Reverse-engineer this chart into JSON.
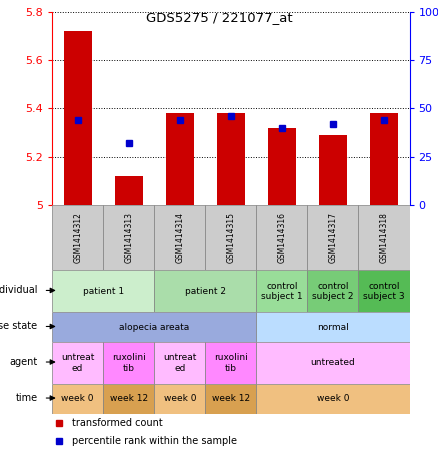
{
  "title": "GDS5275 / 221077_at",
  "samples": [
    "GSM1414312",
    "GSM1414313",
    "GSM1414314",
    "GSM1414315",
    "GSM1414316",
    "GSM1414317",
    "GSM1414318"
  ],
  "red_values": [
    5.72,
    5.12,
    5.38,
    5.38,
    5.32,
    5.29,
    5.38
  ],
  "blue_values": [
    44,
    32,
    44,
    46,
    40,
    42,
    44
  ],
  "ylim_left": [
    5.0,
    5.8
  ],
  "ylim_right": [
    0,
    100
  ],
  "yticks_left": [
    5.0,
    5.2,
    5.4,
    5.6,
    5.8
  ],
  "ytick_labels_left": [
    "5",
    "5.2",
    "5.4",
    "5.6",
    "5.8"
  ],
  "yticks_right": [
    0,
    25,
    50,
    75,
    100
  ],
  "ytick_labels_right": [
    "0",
    "25",
    "50",
    "75",
    "100%"
  ],
  "bar_color": "#cc0000",
  "dot_color": "#0000cc",
  "background_color": "#ffffff",
  "rows": {
    "individual": {
      "label": "individual",
      "cells": [
        {
          "text": "patient 1",
          "span": [
            0,
            1
          ],
          "color": "#cceecc"
        },
        {
          "text": "patient 2",
          "span": [
            2,
            3
          ],
          "color": "#aaddaa"
        },
        {
          "text": "control\nsubject 1",
          "span": [
            4,
            4
          ],
          "color": "#99dd99"
        },
        {
          "text": "control\nsubject 2",
          "span": [
            5,
            5
          ],
          "color": "#77cc77"
        },
        {
          "text": "control\nsubject 3",
          "span": [
            6,
            6
          ],
          "color": "#55bb55"
        }
      ]
    },
    "disease_state": {
      "label": "disease state",
      "cells": [
        {
          "text": "alopecia areata",
          "span": [
            0,
            3
          ],
          "color": "#99aadd"
        },
        {
          "text": "normal",
          "span": [
            4,
            6
          ],
          "color": "#bbddff"
        }
      ]
    },
    "agent": {
      "label": "agent",
      "cells": [
        {
          "text": "untreat\ned",
          "span": [
            0,
            0
          ],
          "color": "#ffbbff"
        },
        {
          "text": "ruxolini\ntib",
          "span": [
            1,
            1
          ],
          "color": "#ff88ff"
        },
        {
          "text": "untreat\ned",
          "span": [
            2,
            2
          ],
          "color": "#ffbbff"
        },
        {
          "text": "ruxolini\ntib",
          "span": [
            3,
            3
          ],
          "color": "#ff88ff"
        },
        {
          "text": "untreated",
          "span": [
            4,
            6
          ],
          "color": "#ffbbff"
        }
      ]
    },
    "time": {
      "label": "time",
      "cells": [
        {
          "text": "week 0",
          "span": [
            0,
            0
          ],
          "color": "#f0c080"
        },
        {
          "text": "week 12",
          "span": [
            1,
            1
          ],
          "color": "#d8a050"
        },
        {
          "text": "week 0",
          "span": [
            2,
            2
          ],
          "color": "#f0c080"
        },
        {
          "text": "week 12",
          "span": [
            3,
            3
          ],
          "color": "#d8a050"
        },
        {
          "text": "week 0",
          "span": [
            4,
            6
          ],
          "color": "#f0c080"
        }
      ]
    }
  }
}
